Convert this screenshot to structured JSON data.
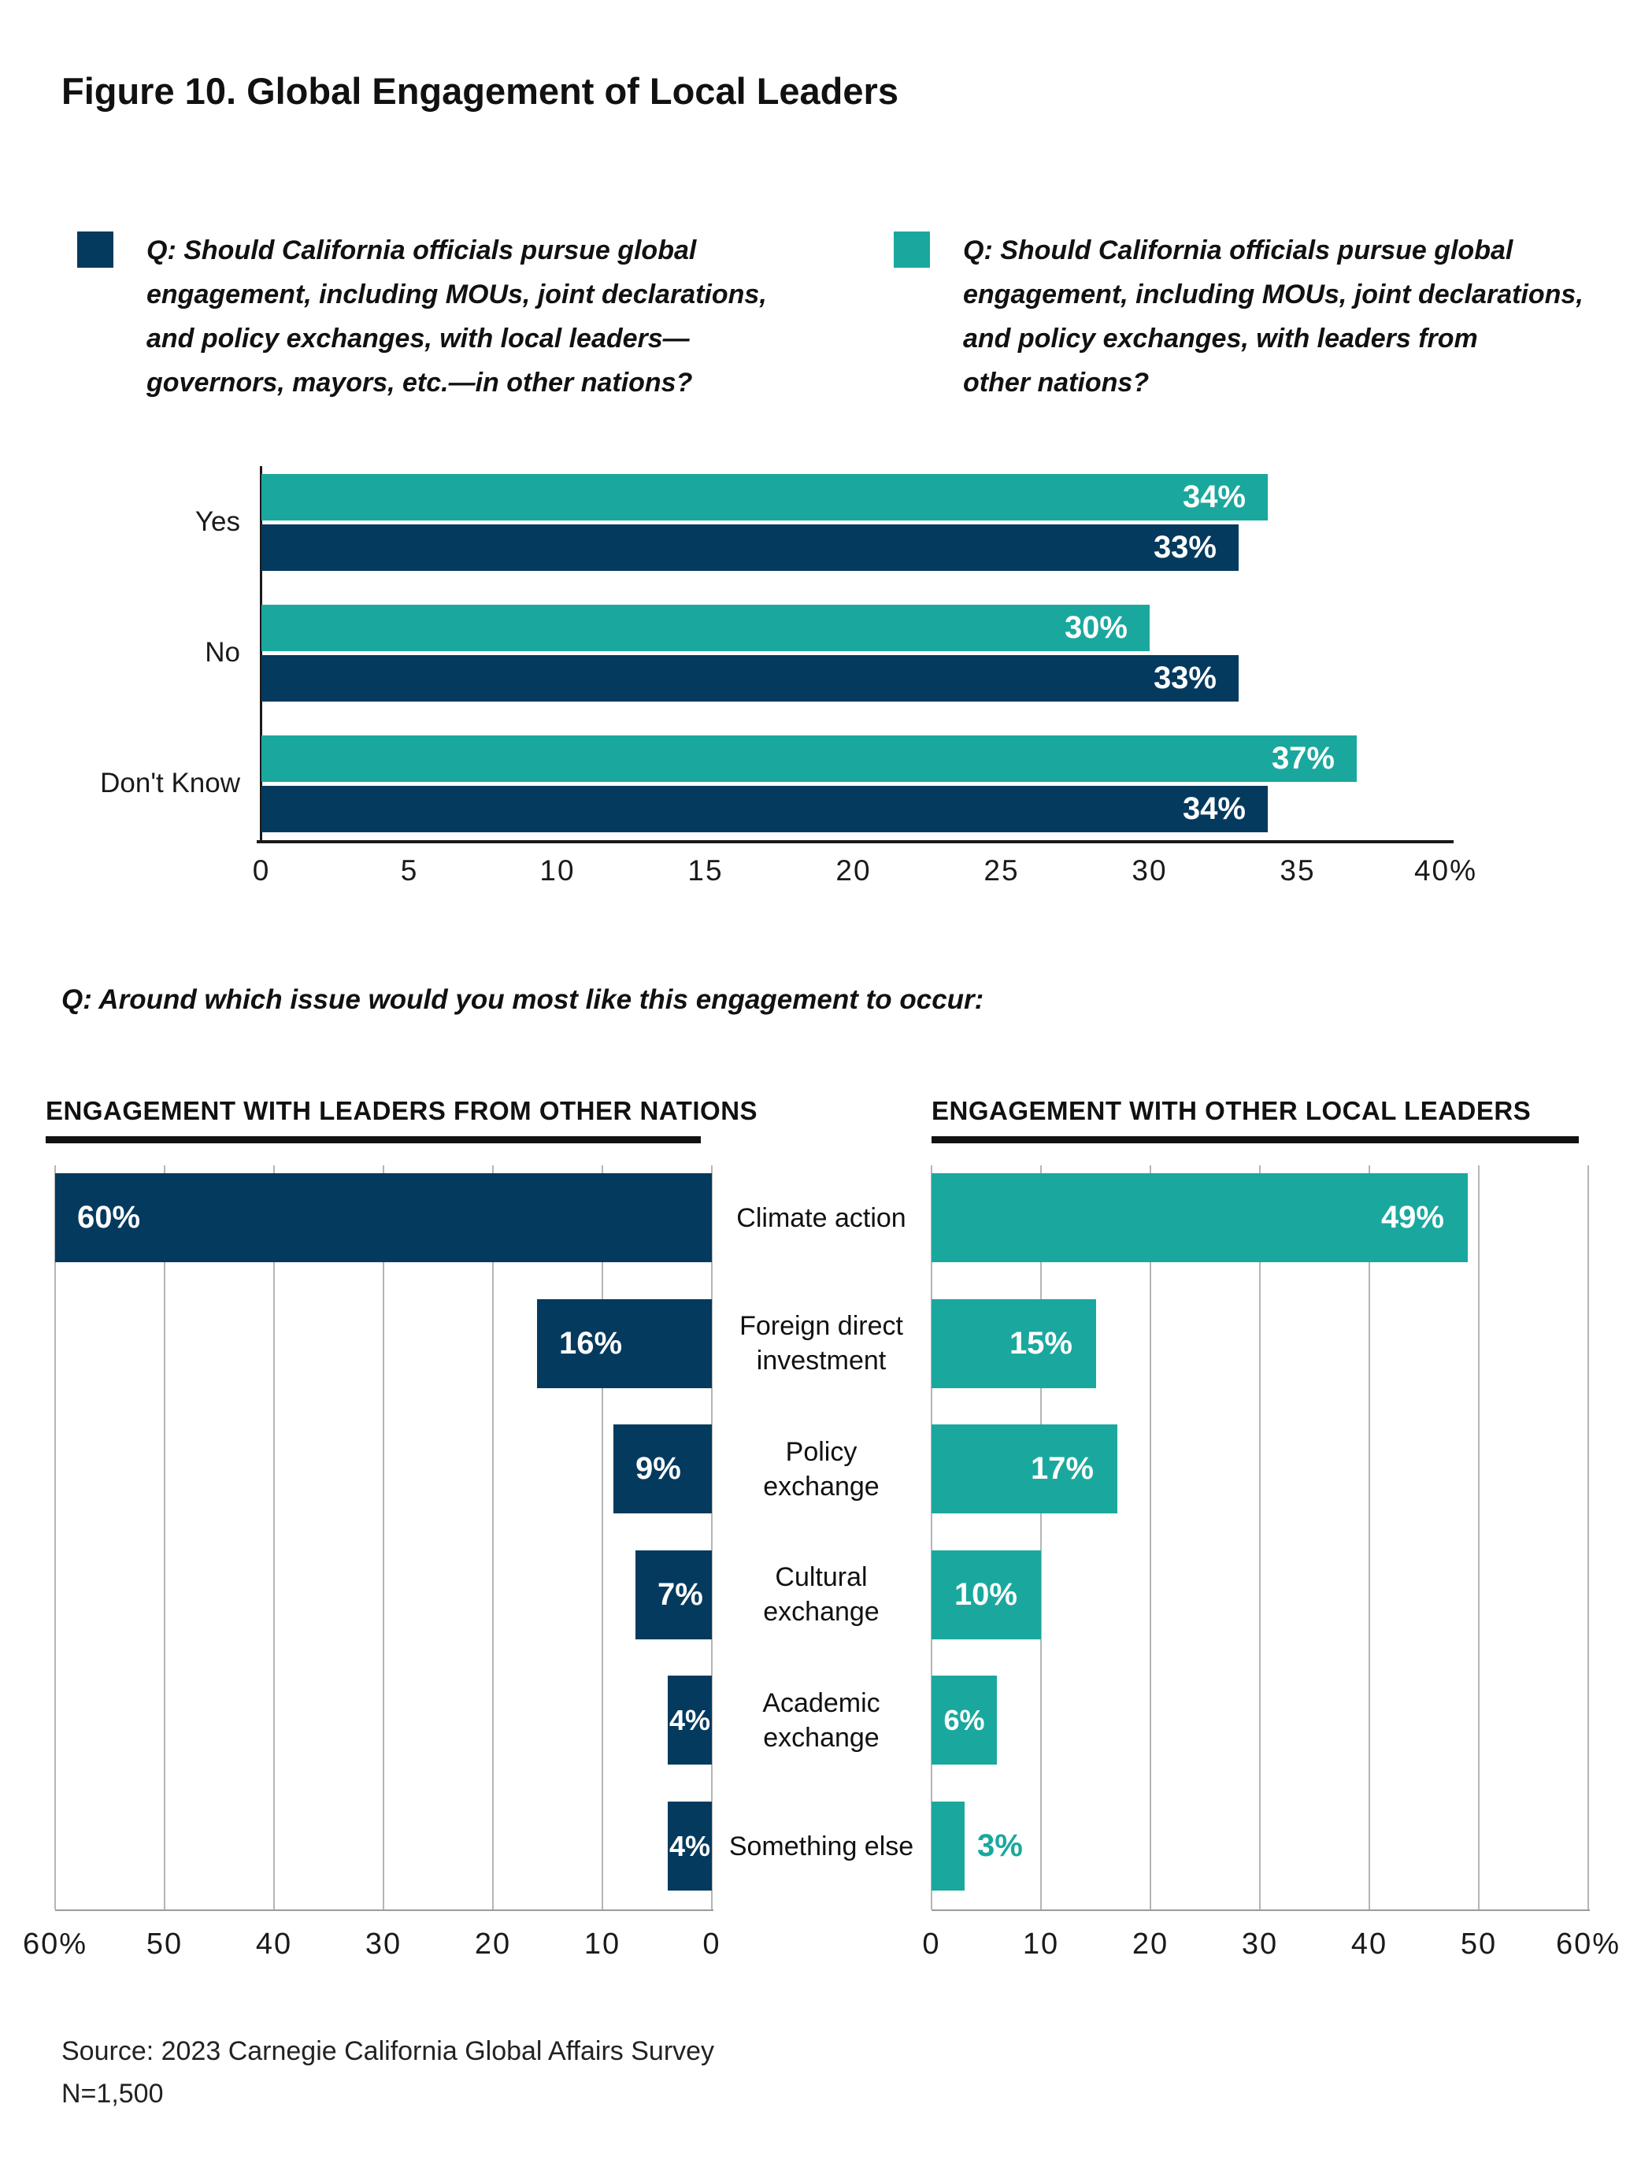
{
  "figure": {
    "title": "Figure 10. Global Engagement of Local Leaders",
    "question2": "Q: Around which issue would you most like this engagement to occur:",
    "source": "Source: 2023 Carnegie California Global Affairs Survey\nN=1,500"
  },
  "legend": {
    "items": [
      {
        "swatch_color": "#043a5e",
        "swatch_name": "navy-legend-swatch",
        "text": "Q: Should California officials pursue global\nengagement, including MOUs, joint declarations,\nand policy exchanges, with local leaders—\ngovernors, mayors, etc.—in other nations?"
      },
      {
        "swatch_color": "#1aa89e",
        "swatch_name": "teal-legend-swatch",
        "text": "Q: Should California officials pursue global\nengagement, including MOUs, joint declarations,\nand policy exchanges, with leaders from\nother nations?"
      }
    ]
  },
  "colors": {
    "navy": "#043a5e",
    "teal": "#1aa89e",
    "gridline": "#b5b5b5",
    "axis_dark": "#1a1a1a",
    "axis_light": "#9b9b9b"
  },
  "chart_data": [
    {
      "type": "bar",
      "orientation": "horizontal-grouped",
      "categories": [
        "Yes",
        "No",
        "Don't Know"
      ],
      "series": [
        {
          "name": "leaders from other nations",
          "color": "#1aa89e",
          "values": [
            34,
            30,
            37
          ]
        },
        {
          "name": "local leaders in other nations",
          "color": "#043a5e",
          "values": [
            33,
            33,
            34
          ]
        }
      ],
      "value_suffix": "%",
      "xlim": [
        0,
        40
      ],
      "tick_values": [
        0,
        5,
        10,
        15,
        20,
        25,
        30,
        35,
        40
      ],
      "tick_labels": [
        "0",
        "5",
        "10",
        "15",
        "20",
        "25",
        "30",
        "35",
        "40%"
      ],
      "grid": false,
      "value_labels": "inside-end"
    },
    {
      "type": "bar",
      "orientation": "horizontal-reversed",
      "title": "ENGAGEMENT WITH LEADERS FROM OTHER NATIONS",
      "color": "#043a5e",
      "categories": [
        "Climate action",
        "Foreign direct\ninvestment",
        "Policy\nexchange",
        "Cultural\nexchange",
        "Academic\nexchange",
        "Something else"
      ],
      "values": [
        60,
        16,
        9,
        7,
        4,
        4
      ],
      "value_suffix": "%",
      "xlim": [
        60,
        0
      ],
      "tick_values": [
        60,
        50,
        40,
        30,
        20,
        10,
        0
      ],
      "tick_labels": [
        "60%",
        "50",
        "40",
        "30",
        "20",
        "10",
        "0"
      ],
      "grid": true,
      "value_labels": "inside-far-end"
    },
    {
      "type": "bar",
      "orientation": "horizontal",
      "title": "ENGAGEMENT WITH OTHER LOCAL LEADERS",
      "color": "#1aa89e",
      "categories": [
        "Climate action",
        "Foreign direct\ninvestment",
        "Policy\nexchange",
        "Cultural\nexchange",
        "Academic\nexchange",
        "Something else"
      ],
      "values": [
        49,
        15,
        17,
        10,
        6,
        3
      ],
      "value_suffix": "%",
      "xlim": [
        0,
        60
      ],
      "tick_values": [
        0,
        10,
        20,
        30,
        40,
        50,
        60
      ],
      "tick_labels": [
        "0",
        "10",
        "20",
        "30",
        "40",
        "50",
        "60%"
      ],
      "grid": true,
      "value_labels": "inside-end-or-outside"
    }
  ]
}
